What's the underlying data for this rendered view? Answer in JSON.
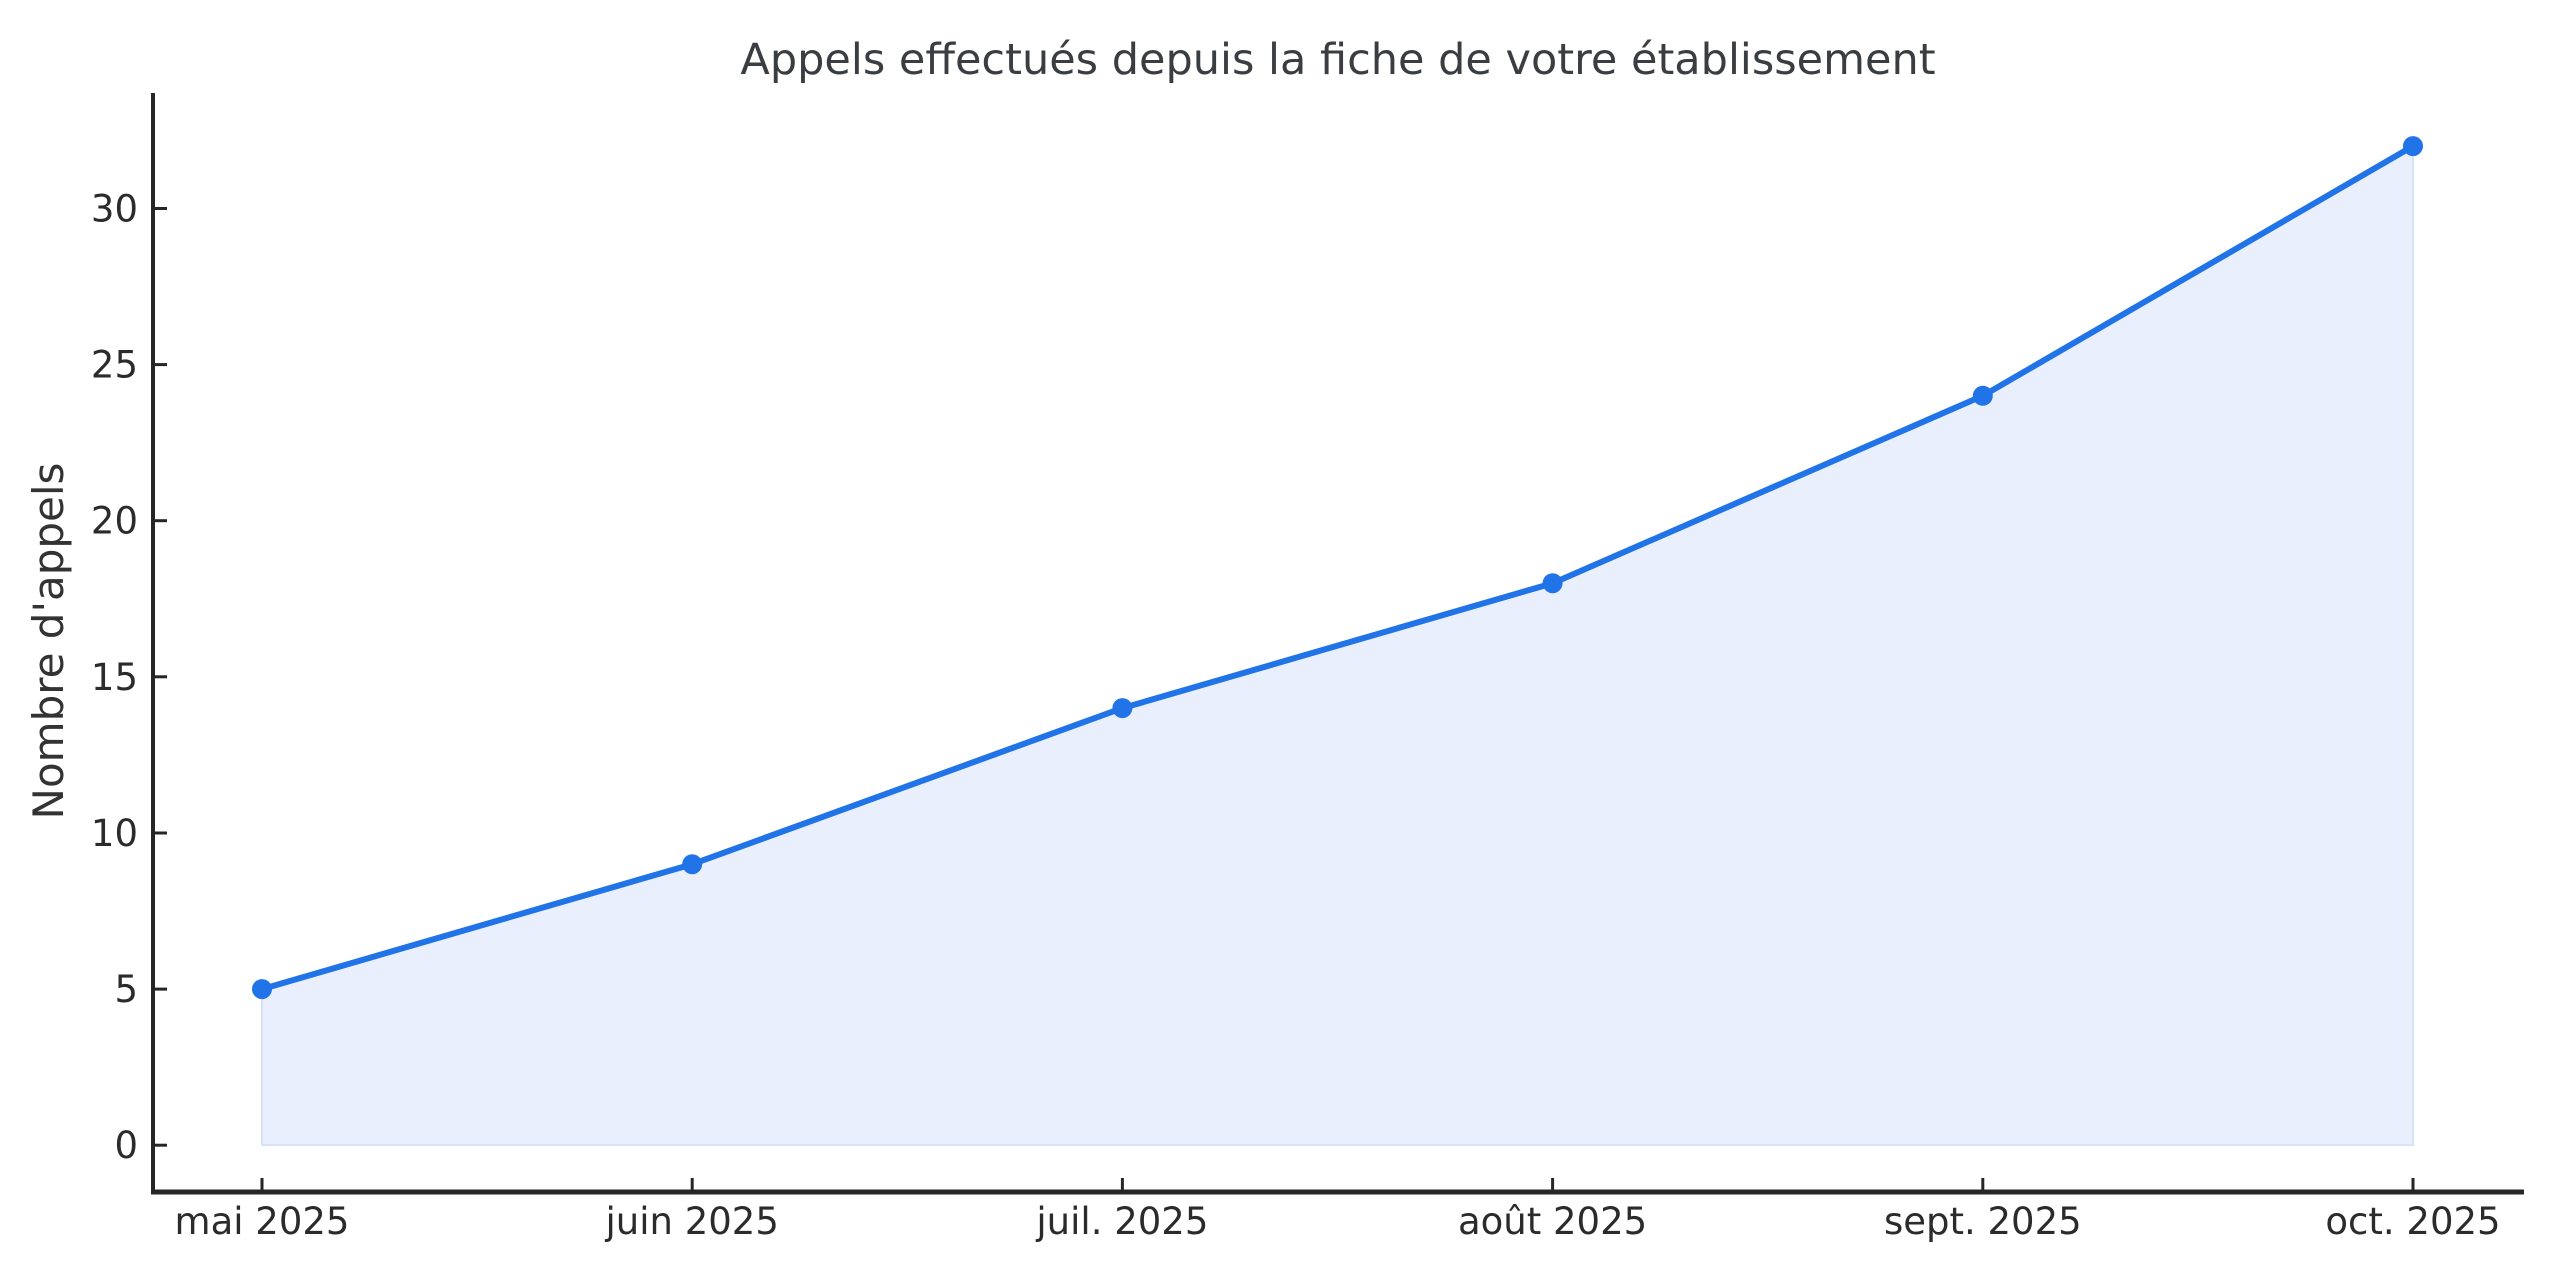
{
  "chart_data": {
    "type": "line",
    "title": "Appels effectués depuis la fiche de votre établissement",
    "ylabel": "Nombre d'appels",
    "xlabel": "",
    "categories": [
      "mai 2025",
      "juin 2025",
      "juil. 2025",
      "août 2025",
      "sept. 2025",
      "oct. 2025"
    ],
    "series": [
      {
        "name": "Nombre d'appels",
        "values": [
          5,
          9,
          14,
          18,
          24,
          32
        ]
      }
    ],
    "yticks": [
      0,
      5,
      10,
      15,
      20,
      25,
      30
    ],
    "ylim": [
      -1.5,
      33.7
    ],
    "grid": false,
    "legend": false,
    "area_fill_from_zero": true,
    "marker": "circle",
    "colors": {
      "line": "#2173e8",
      "marker": "#2173e8",
      "area": "#e9effc",
      "area_edge": "#d7e2f8",
      "axis": "#262626",
      "text": "#333333",
      "background": "#ffffff"
    }
  }
}
